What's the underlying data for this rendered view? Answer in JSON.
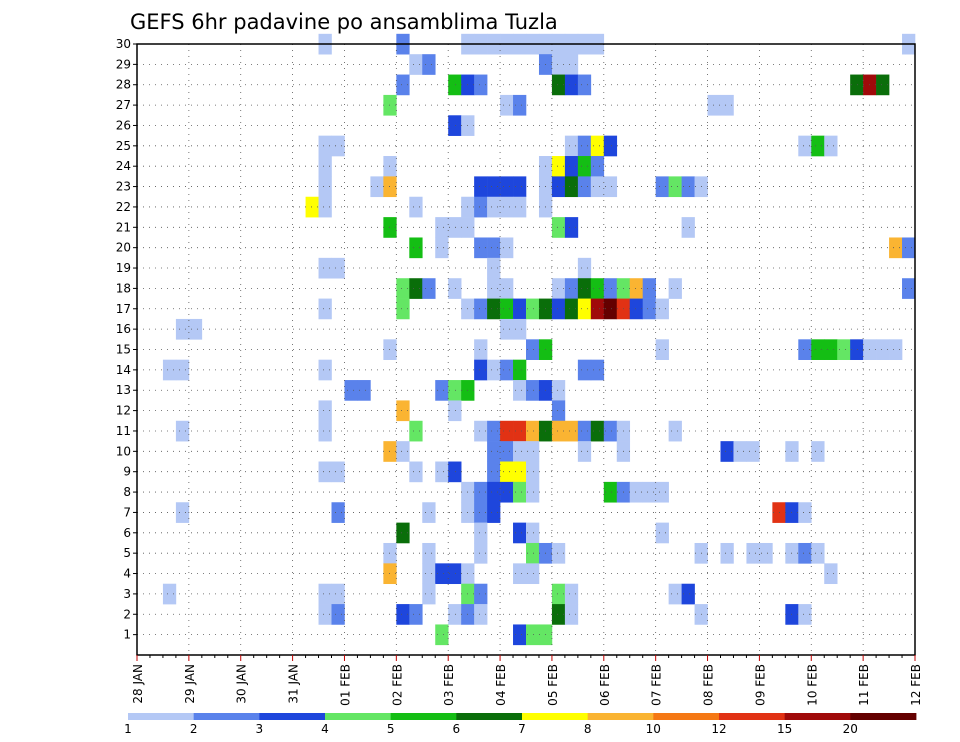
{
  "chart_data": {
    "type": "heatmap",
    "title": "GEFS 6hr padavine po ansamblima Tuzla",
    "xlabel": "",
    "ylabel": "",
    "x_start": "28 JAN 00Z",
    "x_step_hours": 6,
    "x_steps": 60,
    "x_ticks": [
      "28 JAN",
      "29 JAN",
      "30 JAN",
      "31 JAN",
      "01 FEB",
      "02 FEB",
      "03 FEB",
      "04 FEB",
      "05 FEB",
      "06 FEB",
      "07 FEB",
      "08 FEB",
      "09 FEB",
      "10 FEB",
      "11 FEB",
      "12 FEB"
    ],
    "y_ticks": [
      "1",
      "2",
      "3",
      "4",
      "5",
      "6",
      "7",
      "8",
      "9",
      "10",
      "11",
      "12",
      "13",
      "14",
      "15",
      "16",
      "17",
      "18",
      "19",
      "20",
      "21",
      "22",
      "23",
      "24",
      "25",
      "26",
      "27",
      "28",
      "29",
      "30"
    ],
    "y_range": [
      0,
      30
    ],
    "grid": true,
    "colorbar": {
      "colors": [
        "#b4c8f5",
        "#5a82eb",
        "#1e46dc",
        "#64e664",
        "#14be14",
        "#0a6e0a",
        "#ffff00",
        "#fab432",
        "#f57814",
        "#e13214",
        "#a00a0a",
        "#640000"
      ],
      "labels": [
        "1",
        "2",
        "3",
        "4",
        "5",
        "6",
        "7",
        "8",
        "10",
        "12",
        "15",
        "20"
      ]
    },
    "series": [
      {
        "member": "30",
        "values": [
          [
            14,
            0
          ],
          [
            20,
            1
          ],
          [
            25,
            0
          ],
          [
            26,
            0
          ],
          [
            27,
            0
          ],
          [
            28,
            0
          ],
          [
            29,
            0
          ],
          [
            30,
            0
          ],
          [
            31,
            0
          ],
          [
            32,
            0
          ],
          [
            33,
            0
          ],
          [
            34,
            0
          ],
          [
            35,
            0
          ],
          [
            59,
            0
          ]
        ]
      },
      {
        "member": "29",
        "values": [
          [
            21,
            0
          ],
          [
            22,
            1
          ],
          [
            31,
            1
          ],
          [
            32,
            0
          ],
          [
            33,
            0
          ]
        ]
      },
      {
        "member": "28",
        "values": [
          [
            20,
            1
          ],
          [
            24,
            4
          ],
          [
            25,
            2
          ],
          [
            26,
            1
          ],
          [
            32,
            5
          ],
          [
            33,
            2
          ],
          [
            34,
            1
          ],
          [
            55,
            5
          ],
          [
            56,
            10
          ],
          [
            57,
            5
          ]
        ]
      },
      {
        "member": "27",
        "values": [
          [
            19,
            3
          ],
          [
            28,
            0
          ],
          [
            29,
            1
          ],
          [
            44,
            0
          ],
          [
            45,
            0
          ]
        ]
      },
      {
        "member": "26",
        "values": [
          [
            24,
            2
          ],
          [
            25,
            0
          ]
        ]
      },
      {
        "member": "25",
        "values": [
          [
            14,
            0
          ],
          [
            15,
            0
          ],
          [
            33,
            0
          ],
          [
            34,
            1
          ],
          [
            35,
            6
          ],
          [
            36,
            2
          ],
          [
            51,
            0
          ],
          [
            52,
            4
          ],
          [
            53,
            0
          ]
        ]
      },
      {
        "member": "24",
        "values": [
          [
            14,
            0
          ],
          [
            19,
            0
          ],
          [
            31,
            0
          ],
          [
            32,
            6
          ],
          [
            33,
            2
          ],
          [
            34,
            4
          ],
          [
            35,
            1
          ]
        ]
      },
      {
        "member": "23",
        "values": [
          [
            14,
            0
          ],
          [
            18,
            0
          ],
          [
            19,
            7
          ],
          [
            26,
            2
          ],
          [
            27,
            2
          ],
          [
            28,
            2
          ],
          [
            29,
            2
          ],
          [
            31,
            0
          ],
          [
            32,
            2
          ],
          [
            33,
            5
          ],
          [
            34,
            1
          ],
          [
            35,
            0
          ],
          [
            36,
            0
          ],
          [
            40,
            1
          ],
          [
            41,
            3
          ],
          [
            42,
            1
          ],
          [
            43,
            0
          ]
        ]
      },
      {
        "member": "22",
        "values": [
          [
            13,
            6
          ],
          [
            14,
            0
          ],
          [
            21,
            0
          ],
          [
            25,
            0
          ],
          [
            26,
            1
          ],
          [
            27,
            0
          ],
          [
            28,
            0
          ],
          [
            29,
            0
          ],
          [
            31,
            0
          ]
        ]
      },
      {
        "member": "21",
        "values": [
          [
            19,
            4
          ],
          [
            23,
            0
          ],
          [
            24,
            0
          ],
          [
            25,
            0
          ],
          [
            32,
            3
          ],
          [
            33,
            2
          ],
          [
            42,
            0
          ]
        ]
      },
      {
        "member": "20",
        "values": [
          [
            21,
            4
          ],
          [
            23,
            0
          ],
          [
            26,
            1
          ],
          [
            27,
            1
          ],
          [
            28,
            0
          ],
          [
            58,
            7
          ],
          [
            59,
            1
          ]
        ]
      },
      {
        "member": "19",
        "values": [
          [
            14,
            0
          ],
          [
            15,
            0
          ],
          [
            27,
            0
          ],
          [
            34,
            0
          ]
        ]
      },
      {
        "member": "18",
        "values": [
          [
            20,
            3
          ],
          [
            21,
            5
          ],
          [
            22,
            1
          ],
          [
            24,
            0
          ],
          [
            27,
            0
          ],
          [
            28,
            0
          ],
          [
            32,
            0
          ],
          [
            33,
            1
          ],
          [
            34,
            5
          ],
          [
            35,
            4
          ],
          [
            36,
            1
          ],
          [
            37,
            3
          ],
          [
            38,
            7
          ],
          [
            39,
            1
          ],
          [
            41,
            0
          ],
          [
            59,
            1
          ]
        ]
      },
      {
        "member": "17",
        "values": [
          [
            14,
            0
          ],
          [
            20,
            3
          ],
          [
            25,
            0
          ],
          [
            26,
            1
          ],
          [
            27,
            5
          ],
          [
            28,
            4
          ],
          [
            29,
            2
          ],
          [
            30,
            3
          ],
          [
            31,
            5
          ],
          [
            32,
            2
          ],
          [
            33,
            5
          ],
          [
            34,
            6
          ],
          [
            35,
            10
          ],
          [
            36,
            11
          ],
          [
            37,
            9
          ],
          [
            38,
            2
          ],
          [
            39,
            1
          ],
          [
            40,
            0
          ]
        ]
      },
      {
        "member": "16",
        "values": [
          [
            3,
            0
          ],
          [
            4,
            0
          ],
          [
            28,
            0
          ],
          [
            29,
            0
          ]
        ]
      },
      {
        "member": "15",
        "values": [
          [
            19,
            0
          ],
          [
            26,
            0
          ],
          [
            30,
            1
          ],
          [
            31,
            4
          ],
          [
            40,
            0
          ],
          [
            51,
            1
          ],
          [
            52,
            4
          ],
          [
            53,
            4
          ],
          [
            54,
            3
          ],
          [
            55,
            2
          ],
          [
            56,
            0
          ],
          [
            57,
            0
          ],
          [
            58,
            0
          ]
        ]
      },
      {
        "member": "14",
        "values": [
          [
            2,
            0
          ],
          [
            3,
            0
          ],
          [
            14,
            0
          ],
          [
            26,
            2
          ],
          [
            27,
            0
          ],
          [
            28,
            1
          ],
          [
            29,
            4
          ],
          [
            34,
            1
          ],
          [
            35,
            1
          ]
        ]
      },
      {
        "member": "13",
        "values": [
          [
            16,
            1
          ],
          [
            17,
            1
          ],
          [
            23,
            1
          ],
          [
            24,
            3
          ],
          [
            25,
            4
          ],
          [
            29,
            0
          ],
          [
            30,
            1
          ],
          [
            31,
            2
          ],
          [
            32,
            0
          ]
        ]
      },
      {
        "member": "12",
        "values": [
          [
            14,
            0
          ],
          [
            20,
            7
          ],
          [
            24,
            0
          ],
          [
            32,
            1
          ]
        ]
      },
      {
        "member": "11",
        "values": [
          [
            3,
            0
          ],
          [
            14,
            0
          ],
          [
            21,
            3
          ],
          [
            26,
            0
          ],
          [
            27,
            1
          ],
          [
            28,
            9
          ],
          [
            29,
            9
          ],
          [
            30,
            7
          ],
          [
            31,
            5
          ],
          [
            32,
            7
          ],
          [
            33,
            7
          ],
          [
            34,
            1
          ],
          [
            35,
            5
          ],
          [
            36,
            1
          ],
          [
            37,
            0
          ],
          [
            41,
            0
          ]
        ]
      },
      {
        "member": "10",
        "values": [
          [
            19,
            7
          ],
          [
            20,
            0
          ],
          [
            27,
            1
          ],
          [
            28,
            1
          ],
          [
            29,
            0
          ],
          [
            30,
            0
          ],
          [
            34,
            0
          ],
          [
            37,
            0
          ],
          [
            45,
            2
          ],
          [
            46,
            0
          ],
          [
            47,
            0
          ],
          [
            50,
            0
          ],
          [
            52,
            0
          ]
        ]
      },
      {
        "member": "9",
        "values": [
          [
            14,
            0
          ],
          [
            15,
            0
          ],
          [
            21,
            0
          ],
          [
            23,
            0
          ],
          [
            24,
            2
          ],
          [
            27,
            1
          ],
          [
            28,
            6
          ],
          [
            29,
            6
          ],
          [
            30,
            0
          ]
        ]
      },
      {
        "member": "8",
        "values": [
          [
            25,
            0
          ],
          [
            26,
            1
          ],
          [
            27,
            2
          ],
          [
            28,
            2
          ],
          [
            29,
            3
          ],
          [
            30,
            0
          ],
          [
            36,
            4
          ],
          [
            37,
            1
          ],
          [
            38,
            0
          ],
          [
            39,
            0
          ],
          [
            40,
            0
          ]
        ]
      },
      {
        "member": "7",
        "values": [
          [
            3,
            0
          ],
          [
            15,
            1
          ],
          [
            22,
            0
          ],
          [
            25,
            0
          ],
          [
            26,
            1
          ],
          [
            27,
            2
          ],
          [
            49,
            9
          ],
          [
            50,
            2
          ],
          [
            51,
            0
          ]
        ]
      },
      {
        "member": "6",
        "values": [
          [
            20,
            5
          ],
          [
            26,
            0
          ],
          [
            29,
            2
          ],
          [
            30,
            0
          ],
          [
            40,
            0
          ]
        ]
      },
      {
        "member": "5",
        "values": [
          [
            19,
            0
          ],
          [
            22,
            0
          ],
          [
            26,
            0
          ],
          [
            30,
            3
          ],
          [
            31,
            1
          ],
          [
            32,
            0
          ],
          [
            43,
            0
          ],
          [
            45,
            0
          ],
          [
            47,
            0
          ],
          [
            48,
            0
          ],
          [
            50,
            0
          ],
          [
            51,
            1
          ],
          [
            52,
            0
          ]
        ]
      },
      {
        "member": "4",
        "values": [
          [
            19,
            7
          ],
          [
            22,
            0
          ],
          [
            23,
            2
          ],
          [
            24,
            2
          ],
          [
            25,
            0
          ],
          [
            29,
            0
          ],
          [
            30,
            0
          ],
          [
            53,
            0
          ]
        ]
      },
      {
        "member": "3",
        "values": [
          [
            2,
            0
          ],
          [
            14,
            0
          ],
          [
            15,
            0
          ],
          [
            22,
            0
          ],
          [
            25,
            3
          ],
          [
            26,
            1
          ],
          [
            32,
            3
          ],
          [
            33,
            0
          ],
          [
            41,
            0
          ],
          [
            42,
            2
          ]
        ]
      },
      {
        "member": "2",
        "values": [
          [
            14,
            0
          ],
          [
            15,
            1
          ],
          [
            20,
            2
          ],
          [
            21,
            1
          ],
          [
            24,
            0
          ],
          [
            25,
            1
          ],
          [
            26,
            0
          ],
          [
            32,
            5
          ],
          [
            33,
            0
          ],
          [
            43,
            0
          ],
          [
            50,
            2
          ],
          [
            51,
            0
          ]
        ]
      },
      {
        "member": "1",
        "values": [
          [
            23,
            3
          ],
          [
            29,
            2
          ],
          [
            30,
            3
          ],
          [
            31,
            3
          ]
        ]
      }
    ]
  }
}
